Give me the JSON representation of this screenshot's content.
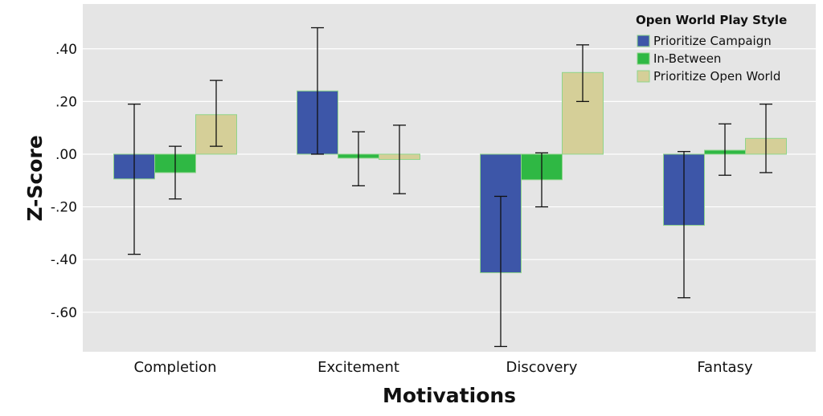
{
  "chart_data": {
    "type": "bar",
    "title": "",
    "xlabel": "Motivations",
    "ylabel": "Z-Score",
    "ylim": [
      -0.75,
      0.57
    ],
    "yticks": [
      0.4,
      0.2,
      0.0,
      -0.2,
      -0.4,
      -0.6
    ],
    "ytick_labels": [
      ".40",
      ".20",
      ".00",
      "-.20",
      "-.40",
      "-.60"
    ],
    "grid": true,
    "legend_placement": "top-right",
    "legend_title": "Open World Play Style",
    "categories": [
      "Completion",
      "Excitement",
      "Discovery",
      "Fantasy"
    ],
    "series": [
      {
        "name": "Prioritize Campaign",
        "color": "#3d56a8",
        "values": [
          -0.094,
          0.24,
          -0.45,
          -0.27
        ],
        "error_low": [
          -0.38,
          0.0,
          -0.73,
          -0.545
        ],
        "error_high": [
          0.19,
          0.48,
          -0.16,
          0.01
        ]
      },
      {
        "name": "In-Between",
        "color": "#2fb844",
        "values": [
          -0.07,
          -0.015,
          -0.097,
          0.015
        ],
        "error_low": [
          -0.17,
          -0.12,
          -0.2,
          -0.08
        ],
        "error_high": [
          0.03,
          0.085,
          0.005,
          0.115
        ]
      },
      {
        "name": "Prioritize Open World",
        "color": "#d5cf98",
        "values": [
          0.15,
          -0.02,
          0.31,
          0.06
        ],
        "error_low": [
          0.03,
          -0.15,
          0.2,
          -0.07
        ],
        "error_high": [
          0.28,
          0.11,
          0.415,
          0.19
        ]
      }
    ],
    "colors": {
      "plot_background": "#e5e5e5",
      "grid": "#ffffff",
      "bar_edge": "#8fd58a"
    }
  }
}
